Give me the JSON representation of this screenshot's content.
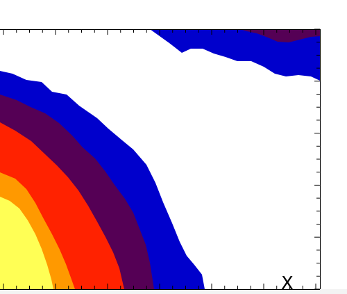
{
  "chart_data": {
    "type": "contour",
    "title": "",
    "xlabel": "X",
    "ylabel": "",
    "grid": false,
    "legend": "none",
    "level_colors": [
      "#0000cc",
      "#550055",
      "#ff2200",
      "#ff9900",
      "#ffff55"
    ],
    "regions": [
      {
        "name": "level-1",
        "color": "#0000cc"
      },
      {
        "name": "level-2",
        "color": "#550055"
      },
      {
        "name": "level-3",
        "color": "#ff2200"
      },
      {
        "name": "level-4",
        "color": "#ff9900"
      },
      {
        "name": "level-5",
        "color": "#ffff55"
      }
    ],
    "top_right_band": [
      {
        "name": "upper-level-1",
        "color": "#0000cc"
      },
      {
        "name": "upper-level-2",
        "color": "#550055"
      }
    ]
  }
}
